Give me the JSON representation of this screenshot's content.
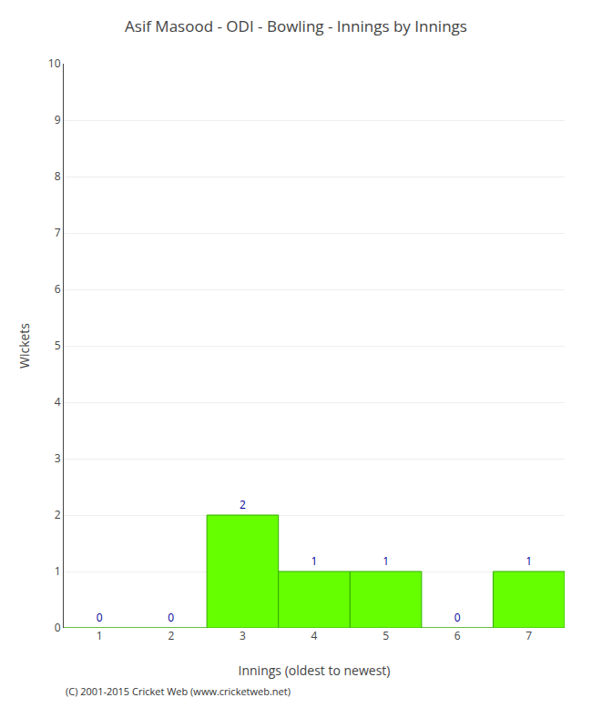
{
  "chart_data": {
    "type": "bar",
    "title": "Asif Masood - ODI - Bowling - Innings by Innings",
    "xlabel": "Innings (oldest to newest)",
    "ylabel": "Wickets",
    "categories": [
      "1",
      "2",
      "3",
      "4",
      "5",
      "6",
      "7"
    ],
    "values": [
      0,
      0,
      2,
      1,
      1,
      0,
      1
    ],
    "color": "#66ff00",
    "ylim": [
      0,
      10
    ],
    "yticks": [
      0,
      1,
      2,
      3,
      4,
      5,
      6,
      7,
      8,
      9,
      10
    ],
    "grid": true,
    "data_labels": true,
    "annotations": [
      "(C) 2001-2015 Cricket Web (www.cricketweb.net)"
    ]
  }
}
